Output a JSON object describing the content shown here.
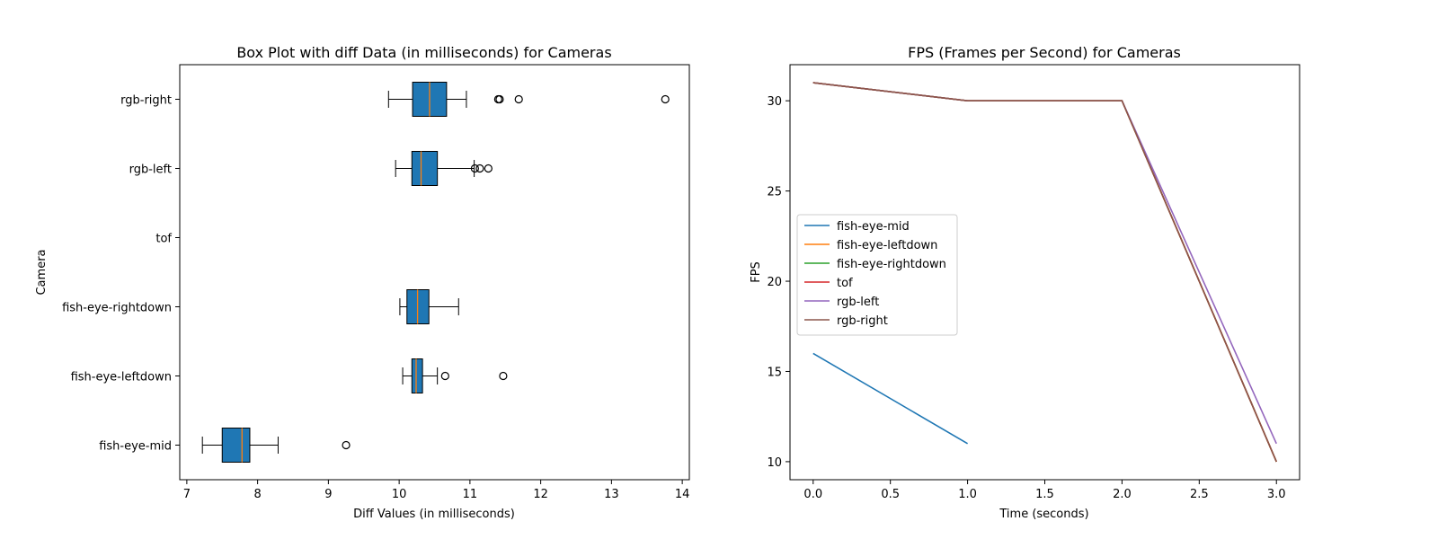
{
  "chart_data": [
    {
      "type": "boxplot",
      "orientation": "horizontal",
      "title": "Box Plot with diff Data (in milliseconds) for Cameras",
      "xlabel": "Diff Values (in milliseconds)",
      "ylabel": "Camera",
      "xlim": [
        6.9,
        14.1
      ],
      "xticks": [
        7,
        8,
        9,
        10,
        11,
        12,
        13,
        14
      ],
      "categories": [
        "fish-eye-mid",
        "fish-eye-leftdown",
        "fish-eye-rightdown",
        "tof",
        "rgb-left",
        "rgb-right"
      ],
      "box_color": "#1f77b4",
      "median_color": "#ff7f0e",
      "boxes": [
        {
          "name": "fish-eye-mid",
          "whisker_low": 7.22,
          "q1": 7.5,
          "median": 7.78,
          "q3": 7.89,
          "whisker_high": 8.29,
          "outliers": [
            9.25
          ]
        },
        {
          "name": "fish-eye-leftdown",
          "whisker_low": 10.05,
          "q1": 10.18,
          "median": 10.24,
          "q3": 10.33,
          "whisker_high": 10.54,
          "outliers": [
            10.65,
            11.47
          ]
        },
        {
          "name": "fish-eye-rightdown",
          "whisker_low": 10.01,
          "q1": 10.11,
          "median": 10.26,
          "q3": 10.42,
          "whisker_high": 10.84,
          "outliers": []
        },
        {
          "name": "tof",
          "empty": true
        },
        {
          "name": "rgb-left",
          "whisker_low": 9.95,
          "q1": 10.18,
          "median": 10.31,
          "q3": 10.54,
          "whisker_high": 11.06,
          "outliers": [
            11.07,
            11.14,
            11.26
          ]
        },
        {
          "name": "rgb-right",
          "whisker_low": 9.85,
          "q1": 10.19,
          "median": 10.43,
          "q3": 10.67,
          "whisker_high": 10.95,
          "outliers": [
            11.4,
            11.42,
            11.69,
            13.76
          ]
        }
      ]
    },
    {
      "type": "line",
      "title": "FPS (Frames per Second) for Cameras",
      "xlabel": "Time (seconds)",
      "ylabel": "FPS",
      "xlim": [
        -0.15,
        3.15
      ],
      "ylim": [
        9.0,
        32.0
      ],
      "xticks": [
        "0.0",
        "0.5",
        "1.0",
        "1.5",
        "2.0",
        "2.5",
        "3.0"
      ],
      "yticks": [
        10,
        15,
        20,
        25,
        30
      ],
      "legend_position": "center-left",
      "series": [
        {
          "name": "fish-eye-mid",
          "color": "#1f77b4",
          "x": [
            0,
            1
          ],
          "y": [
            16,
            11
          ]
        },
        {
          "name": "fish-eye-leftdown",
          "color": "#ff7f0e",
          "x": [
            0,
            1,
            2,
            3
          ],
          "y": [
            31,
            30,
            30,
            10
          ]
        },
        {
          "name": "fish-eye-rightdown",
          "color": "#2ca02c",
          "x": [
            0,
            1,
            2,
            3
          ],
          "y": [
            31,
            30,
            30,
            10
          ]
        },
        {
          "name": "tof",
          "color": "#d62728",
          "x": [
            0,
            1,
            2,
            3
          ],
          "y": [
            31,
            30,
            30,
            10
          ]
        },
        {
          "name": "rgb-left",
          "color": "#9467bd",
          "x": [
            0,
            1,
            2,
            3
          ],
          "y": [
            31,
            30,
            30,
            11
          ]
        },
        {
          "name": "rgb-right",
          "color": "#8c564b",
          "x": [
            0,
            1,
            2,
            3
          ],
          "y": [
            31,
            30,
            30,
            10
          ]
        }
      ]
    }
  ]
}
